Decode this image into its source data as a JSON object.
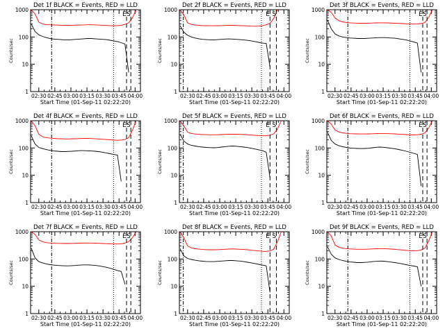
{
  "chart_data": [
    {
      "type": "line",
      "title": "Det 1f BLACK = Events, RED = LLD",
      "xlabel": "Start Time (01-Sep-11 02:22:20)",
      "ylabel": "Counts/sec",
      "series": [
        {
          "color": "#ff0000",
          "values": [
            1000,
            700,
            350,
            300,
            285,
            280,
            276,
            272,
            270,
            268,
            268,
            270,
            272,
            275,
            278,
            280,
            280,
            278,
            275,
            270,
            265,
            262,
            260,
            262,
            268,
            290,
            330,
            500,
            1000
          ]
        },
        {
          "color": "#000000",
          "values": [
            300,
            160,
            120,
            105,
            95,
            88,
            84,
            82,
            80,
            78,
            78,
            80,
            82,
            84,
            86,
            88,
            88,
            86,
            84,
            82,
            80,
            76,
            72,
            68,
            62,
            55,
            5,
            null,
            null
          ]
        }
      ],
      "markers": [
        {
          "x": "02:42",
          "style": "dash-dot",
          "label": ""
        },
        {
          "x": "03:40",
          "style": "dotted",
          "label": ""
        },
        {
          "x": "03:52",
          "style": "dashed",
          "label": "E"
        },
        {
          "x": "03:56",
          "style": "dashed",
          "label": "S"
        }
      ]
    },
    {
      "type": "line",
      "title": "Det 2f BLACK = Events, RED = LLD",
      "xlabel": "Start Time (01-Sep-11 02:22:20)",
      "ylabel": "Counts/sec",
      "series": [
        {
          "color": "#ff0000",
          "values": [
            1000,
            650,
            330,
            290,
            275,
            268,
            262,
            260,
            258,
            258,
            260,
            262,
            265,
            268,
            268,
            265,
            262,
            258,
            255,
            250,
            248,
            250,
            258,
            280,
            320,
            480,
            1000,
            null,
            null
          ]
        },
        {
          "color": "#000000",
          "values": [
            260,
            150,
            115,
            100,
            92,
            86,
            82,
            80,
            79,
            78,
            80,
            82,
            84,
            85,
            84,
            82,
            80,
            78,
            75,
            72,
            68,
            64,
            60,
            58,
            8,
            null,
            null,
            null,
            null
          ]
        }
      ],
      "markers": [
        {
          "x": "02:26",
          "style": "dash-dot",
          "label": ""
        },
        {
          "x": "03:39",
          "style": "dotted",
          "label": ""
        },
        {
          "x": "03:47",
          "style": "dashed",
          "label": "E"
        },
        {
          "x": "03:53",
          "style": "dashed",
          "label": "S"
        }
      ]
    },
    {
      "type": "line",
      "title": "Det 3f BLACK = Events, RED = LLD",
      "xlabel": "Start Time (01-Sep-11 02:22:20)",
      "ylabel": "Counts/sec",
      "series": [
        {
          "color": "#ff0000",
          "values": [
            1000,
            800,
            500,
            400,
            360,
            340,
            330,
            325,
            322,
            320,
            320,
            322,
            325,
            328,
            330,
            330,
            328,
            325,
            320,
            315,
            310,
            305,
            300,
            298,
            300,
            310,
            340,
            520,
            1000
          ]
        },
        {
          "color": "#000000",
          "values": [
            420,
            200,
            130,
            110,
            100,
            95,
            92,
            90,
            88,
            88,
            88,
            90,
            92,
            94,
            95,
            95,
            94,
            92,
            90,
            86,
            82,
            78,
            72,
            66,
            60,
            5,
            null,
            null,
            null
          ]
        }
      ],
      "markers": [
        {
          "x": "02:42",
          "style": "dash-dot",
          "label": ""
        },
        {
          "x": "03:40",
          "style": "dotted",
          "label": ""
        },
        {
          "x": "03:52",
          "style": "dashed",
          "label": "E"
        },
        {
          "x": "03:56",
          "style": "dashed",
          "label": "S"
        }
      ]
    },
    {
      "type": "line",
      "title": "Det 4f BLACK = Events, RED = LLD",
      "xlabel": "Start Time (01-Sep-11 02:22:20)",
      "ylabel": "Counts/sec",
      "series": [
        {
          "color": "#ff0000",
          "values": [
            1000,
            650,
            320,
            260,
            240,
            230,
            225,
            220,
            218,
            215,
            215,
            218,
            220,
            222,
            225,
            225,
            222,
            220,
            215,
            210,
            205,
            200,
            195,
            192,
            195,
            205,
            240,
            450,
            1000
          ]
        },
        {
          "color": "#000000",
          "values": [
            280,
            140,
            105,
            95,
            88,
            82,
            78,
            76,
            74,
            74,
            75,
            76,
            78,
            80,
            80,
            79,
            78,
            76,
            74,
            70,
            66,
            62,
            58,
            55,
            6,
            null,
            null,
            null,
            null
          ]
        }
      ],
      "markers": [
        {
          "x": "02:42",
          "style": "dash-dot",
          "label": ""
        },
        {
          "x": "03:40",
          "style": "dotted",
          "label": ""
        },
        {
          "x": "03:52",
          "style": "dashed",
          "label": "E"
        },
        {
          "x": "03:56",
          "style": "dashed",
          "label": "S"
        }
      ]
    },
    {
      "type": "line",
      "title": "Det 5f BLACK = Events, RED = LLD",
      "xlabel": "Start Time (01-Sep-11 02:22:20)",
      "ylabel": "Counts/sec",
      "series": [
        {
          "color": "#ff0000",
          "values": [
            1000,
            650,
            380,
            340,
            325,
            318,
            312,
            308,
            305,
            305,
            306,
            310,
            315,
            320,
            322,
            320,
            316,
            312,
            305,
            298,
            290,
            285,
            280,
            282,
            295,
            330,
            500,
            1000,
            null
          ]
        },
        {
          "color": "#000000",
          "values": [
            320,
            180,
            140,
            125,
            118,
            112,
            108,
            105,
            103,
            102,
            104,
            108,
            112,
            116,
            118,
            116,
            112,
            108,
            104,
            98,
            92,
            86,
            80,
            70,
            8,
            null,
            null,
            null,
            null
          ]
        }
      ],
      "markers": [
        {
          "x": "02:26",
          "style": "dash-dot",
          "label": ""
        },
        {
          "x": "03:39",
          "style": "dotted",
          "label": ""
        },
        {
          "x": "03:47",
          "style": "dashed",
          "label": "E"
        },
        {
          "x": "03:53",
          "style": "dashed",
          "label": "S"
        }
      ]
    },
    {
      "type": "line",
      "title": "Det 6f BLACK = Events, RED = LLD",
      "xlabel": "Start Time (01-Sep-11 02:22:20)",
      "ylabel": "Counts/sec",
      "series": [
        {
          "color": "#ff0000",
          "values": [
            1000,
            750,
            460,
            390,
            360,
            345,
            335,
            330,
            328,
            326,
            326,
            328,
            332,
            336,
            340,
            340,
            336,
            332,
            328,
            322,
            316,
            310,
            305,
            302,
            306,
            320,
            360,
            540,
            1000
          ]
        },
        {
          "color": "#000000",
          "values": [
            380,
            190,
            140,
            122,
            112,
            105,
            100,
            98,
            96,
            95,
            96,
            98,
            102,
            106,
            108,
            106,
            102,
            98,
            94,
            88,
            82,
            76,
            70,
            64,
            58,
            4,
            null,
            null,
            null
          ]
        }
      ],
      "markers": [
        {
          "x": "02:42",
          "style": "dash-dot",
          "label": ""
        },
        {
          "x": "03:40",
          "style": "dotted",
          "label": ""
        },
        {
          "x": "03:52",
          "style": "dashed",
          "label": "E"
        },
        {
          "x": "03:56",
          "style": "dashed",
          "label": "S"
        }
      ]
    },
    {
      "type": "line",
      "title": "Det 7f BLACK = Events, RED = LLD",
      "xlabel": "Start Time (01-Sep-11 02:22:20)",
      "ylabel": "Counts/sec",
      "series": [
        {
          "color": "#ff0000",
          "values": [
            1000,
            800,
            500,
            430,
            400,
            385,
            378,
            374,
            372,
            370,
            370,
            372,
            376,
            380,
            384,
            386,
            384,
            380,
            376,
            370,
            365,
            360,
            356,
            354,
            360,
            380,
            430,
            600,
            1000
          ]
        },
        {
          "color": "#000000",
          "values": [
            250,
            110,
            80,
            72,
            66,
            62,
            60,
            58,
            57,
            56,
            56,
            57,
            58,
            60,
            61,
            61,
            60,
            58,
            56,
            53,
            50,
            46,
            42,
            38,
            35,
            12,
            null,
            null,
            null
          ]
        }
      ],
      "markers": [
        {
          "x": "02:42",
          "style": "dash-dot",
          "label": ""
        },
        {
          "x": "03:40",
          "style": "dotted",
          "label": ""
        },
        {
          "x": "03:52",
          "style": "dashed",
          "label": "E"
        },
        {
          "x": "03:56",
          "style": "dashed",
          "label": "S"
        }
      ]
    },
    {
      "type": "line",
      "title": "Det 8f BLACK = Events, RED = LLD",
      "xlabel": "Start Time (01-Sep-11 02:22:20)",
      "ylabel": "Counts/sec",
      "series": [
        {
          "color": "#ff0000",
          "values": [
            1000,
            600,
            300,
            255,
            238,
            230,
            224,
            220,
            218,
            218,
            220,
            224,
            228,
            232,
            234,
            232,
            228,
            224,
            218,
            210,
            204,
            198,
            192,
            190,
            198,
            230,
            430,
            1000,
            null
          ]
        },
        {
          "color": "#000000",
          "values": [
            240,
            130,
            105,
            96,
            90,
            86,
            83,
            81,
            80,
            80,
            82,
            84,
            86,
            88,
            88,
            86,
            84,
            80,
            76,
            72,
            68,
            64,
            60,
            56,
            6,
            null,
            null,
            null,
            null
          ]
        }
      ],
      "markers": [
        {
          "x": "02:26",
          "style": "dash-dot",
          "label": ""
        },
        {
          "x": "03:39",
          "style": "dotted",
          "label": ""
        },
        {
          "x": "03:47",
          "style": "dashed",
          "label": "E"
        },
        {
          "x": "03:53",
          "style": "dashed",
          "label": "S"
        }
      ]
    },
    {
      "type": "line",
      "title": "Det 9f BLACK = Events, RED = LLD",
      "xlabel": "Start Time (01-Sep-11 02:22:20)",
      "ylabel": "Counts/sec",
      "series": [
        {
          "color": "#ff0000",
          "values": [
            1000,
            700,
            330,
            270,
            250,
            240,
            234,
            230,
            228,
            227,
            228,
            230,
            234,
            238,
            240,
            240,
            236,
            232,
            226,
            220,
            214,
            208,
            202,
            198,
            202,
            215,
            250,
            450,
            1000
          ]
        },
        {
          "color": "#000000",
          "values": [
            280,
            150,
            110,
            96,
            88,
            82,
            78,
            76,
            74,
            74,
            75,
            77,
            80,
            82,
            84,
            83,
            80,
            77,
            74,
            70,
            66,
            62,
            58,
            55,
            52,
            10,
            null,
            null,
            null
          ]
        }
      ],
      "markers": [
        {
          "x": "02:42",
          "style": "dash-dot",
          "label": ""
        },
        {
          "x": "03:40",
          "style": "dotted",
          "label": ""
        },
        {
          "x": "03:52",
          "style": "dashed",
          "label": "E"
        },
        {
          "x": "03:56",
          "style": "dashed",
          "label": "S"
        }
      ]
    }
  ],
  "axes": {
    "xticks": [
      "02:30",
      "02:45",
      "03:00",
      "03:15",
      "03:30",
      "03:45",
      "04:00"
    ],
    "xrange": [
      "02:22:20",
      "04:05:00"
    ],
    "yscale": "log",
    "yticks": [
      "1",
      "10",
      "100",
      "1000"
    ],
    "yrange": [
      1,
      1000
    ],
    "series_start": "02:23",
    "series_step_minutes": 3.5
  },
  "colors": {
    "events": "#000000",
    "lld": "#ff0000",
    "background": "#ffffff"
  }
}
